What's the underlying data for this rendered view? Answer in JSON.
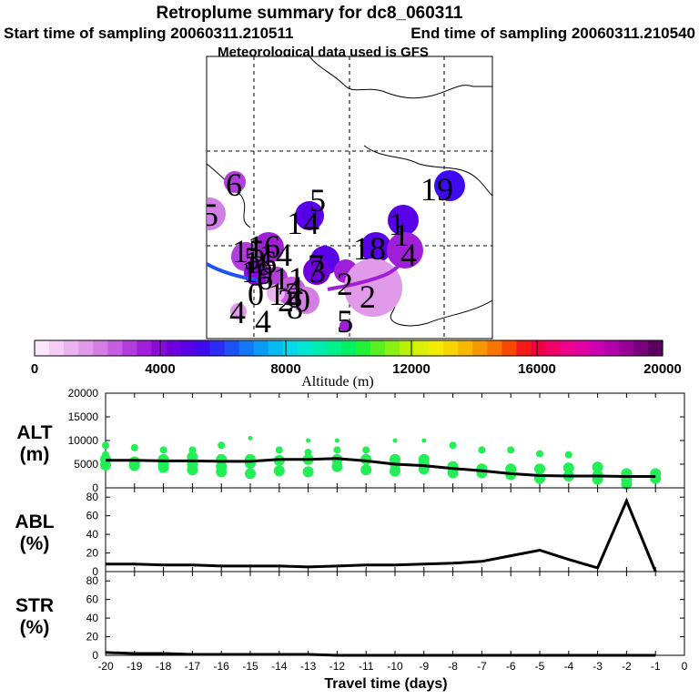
{
  "title": {
    "line1": "Retroplume summary for dc8_060311",
    "start": "Start time of sampling 20060311.210511",
    "end": "End time of sampling 20060311.210540",
    "met": "Meteorological data used is GFS"
  },
  "colorbar": {
    "label": "Altitude (m)",
    "min": 0,
    "max": 20000,
    "tick_labels": [
      "0",
      "4000",
      "8000",
      "12000",
      "16000",
      "20000"
    ],
    "colors": [
      "#fbe6fb",
      "#f3cdf3",
      "#eab4ef",
      "#e19ae9",
      "#d47ee4",
      "#c65ee0",
      "#b33cdc",
      "#a01ed8",
      "#8a0ad8",
      "#7000e0",
      "#5800e8",
      "#3e0af0",
      "#2d2cf4",
      "#1f52f5",
      "#1378f5",
      "#0a9cf5",
      "#06bdf2",
      "#04d8ea",
      "#00e8d0",
      "#00edb0",
      "#00f08c",
      "#00f264",
      "#20f238",
      "#58f020",
      "#8cf010",
      "#b8f008",
      "#dcf004",
      "#f4ec00",
      "#f8d400",
      "#f8b800",
      "#f89800",
      "#f87400",
      "#f84800",
      "#f41818",
      "#f00040",
      "#f00068",
      "#ec008c",
      "#e000a4",
      "#cc00b0",
      "#b400ac",
      "#980098",
      "#7a007c",
      "#5c0060"
    ]
  },
  "map": {
    "labels": [
      {
        "text": "6"
      },
      {
        "text": "5"
      },
      {
        "text": "14"
      },
      {
        "text": "5"
      },
      {
        "text": "19"
      },
      {
        "text": "1"
      },
      {
        "text": "15"
      },
      {
        "text": "16"
      },
      {
        "text": "1"
      },
      {
        "text": "18"
      },
      {
        "text": "16"
      },
      {
        "text": "4"
      },
      {
        "text": "1"
      },
      {
        "text": "6"
      },
      {
        "text": "3"
      },
      {
        "text": "4"
      },
      {
        "text": "11"
      },
      {
        "text": "2"
      },
      {
        "text": "12"
      },
      {
        "text": "7"
      },
      {
        "text": "5"
      },
      {
        "text": "9"
      },
      {
        "text": "2"
      },
      {
        "text": "0"
      },
      {
        "text": "8"
      },
      {
        "text": "14"
      },
      {
        "text": "20"
      },
      {
        "text": "4"
      },
      {
        "text": "4"
      },
      {
        "text": "5"
      }
    ]
  },
  "chart_data": [
    {
      "type": "scatter",
      "name": "ALT",
      "ylabel_line1": "ALT",
      "ylabel_line2": "(m)",
      "ylim": [
        0,
        20000
      ],
      "yticks": [
        "0",
        "5000",
        "10000",
        "15000",
        "20000"
      ],
      "mean_line": {
        "x": [
          -20,
          -19,
          -18,
          -17,
          -16,
          -15,
          -14,
          -13,
          -12,
          -11,
          -10,
          -9,
          -8,
          -7,
          -6,
          -5,
          -4,
          -3,
          -2,
          -1
        ],
        "y": [
          5800,
          5800,
          5700,
          5700,
          5600,
          5600,
          6000,
          6000,
          6200,
          5700,
          5000,
          4700,
          4100,
          3600,
          3000,
          2600,
          2500,
          2500,
          2400,
          2400
        ]
      },
      "points": {
        "x": [
          -20,
          -20,
          -20,
          -20,
          -19,
          -19,
          -19,
          -18,
          -18,
          -18,
          -18,
          -17,
          -17,
          -17,
          -17,
          -16,
          -16,
          -16,
          -16,
          -15,
          -15,
          -15,
          -15,
          -14,
          -14,
          -14,
          -13,
          -13,
          -13,
          -13,
          -12,
          -12,
          -12,
          -12,
          -11,
          -11,
          -11,
          -10,
          -10,
          -10,
          -10,
          -9,
          -9,
          -9,
          -9,
          -8,
          -8,
          -8,
          -7,
          -7,
          -7,
          -6,
          -6,
          -6,
          -5,
          -5,
          -5,
          -4,
          -4,
          -4,
          -3,
          -3,
          -3,
          -2,
          -2,
          -2,
          -1,
          -1
        ],
        "y": [
          9000,
          7000,
          6000,
          4800,
          8500,
          5500,
          4700,
          8000,
          6000,
          5000,
          4300,
          8000,
          6500,
          5000,
          3800,
          9000,
          6000,
          4500,
          3400,
          10500,
          6000,
          5200,
          3000,
          8000,
          5800,
          3600,
          10000,
          7500,
          6000,
          3400,
          10000,
          8000,
          6000,
          4500,
          8000,
          6000,
          3800,
          10000,
          6000,
          5000,
          3500,
          10000,
          6000,
          5000,
          4000,
          9000,
          4500,
          3200,
          8000,
          4000,
          3200,
          8000,
          4000,
          2800,
          7200,
          4000,
          2000,
          7000,
          4200,
          2500,
          4400,
          2600,
          1800,
          3000,
          1800,
          800,
          3000,
          2000
        ]
      },
      "xlim": [
        -20,
        0
      ]
    },
    {
      "type": "line",
      "name": "ABL",
      "ylabel_line1": "ABL",
      "ylabel_line2": "(%)",
      "ylim": [
        0,
        90
      ],
      "yticks": [
        "0",
        "20",
        "40",
        "60",
        "80"
      ],
      "x": [
        -20,
        -19,
        -18,
        -17,
        -16,
        -15,
        -14,
        -13,
        -12,
        -11,
        -10,
        -9,
        -8,
        -7,
        -6,
        -5,
        -4,
        -3,
        -2,
        -1
      ],
      "y": [
        8,
        8,
        7,
        7,
        6,
        6,
        6,
        5,
        6,
        7,
        7,
        8,
        9,
        11,
        17,
        23,
        13,
        4,
        76,
        0
      ],
      "xlim": [
        -20,
        0
      ]
    },
    {
      "type": "line",
      "name": "STR",
      "ylabel_line1": "STR",
      "ylabel_line2": "(%)",
      "ylim": [
        0,
        90
      ],
      "yticks": [
        "0",
        "20",
        "40",
        "60",
        "80"
      ],
      "x": [
        -20,
        -19,
        -18,
        -17,
        -16,
        -15,
        -14,
        -13,
        -12,
        -11,
        -10,
        -9,
        -8,
        -7,
        -6,
        -5,
        -4,
        -3,
        -2,
        -1
      ],
      "y": [
        3,
        2,
        2,
        1,
        1,
        1,
        1,
        1,
        0,
        0,
        0,
        0,
        0,
        0,
        0,
        0,
        0,
        0,
        0,
        0
      ],
      "xlim": [
        -20,
        0
      ],
      "xlabel": "Travel time (days)",
      "xticks": [
        "-20",
        "-19",
        "-18",
        "-17",
        "-16",
        "-15",
        "-14",
        "-13",
        "-12",
        "-11",
        "-10",
        "-9",
        "-8",
        "-7",
        "-6",
        "-5",
        "-4",
        "-3",
        "-2",
        "-1",
        "0"
      ]
    }
  ]
}
